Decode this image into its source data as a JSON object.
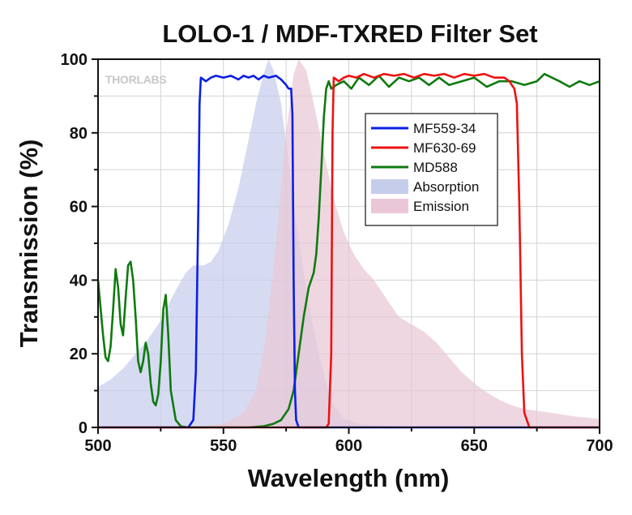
{
  "chart_data": {
    "type": "line",
    "title": "LOLO-1 / MDF-TXRED Filter Set",
    "xlabel": "Wavelength (nm)",
    "ylabel": "Transmission (%)",
    "xlim": [
      500,
      700
    ],
    "ylim": [
      0,
      100
    ],
    "x_ticks": [
      "500",
      "550",
      "600",
      "650",
      "700"
    ],
    "y_ticks": [
      "0",
      "20",
      "40",
      "60",
      "80",
      "100"
    ],
    "grid": true,
    "legend_position": "upper-right",
    "logo_text": "THORLABS",
    "series": [
      {
        "name": "MF559-34",
        "kind": "line",
        "color": "#0a1ee8",
        "points": [
          [
            500,
            0
          ],
          [
            536,
            0
          ],
          [
            538,
            2
          ],
          [
            539,
            15
          ],
          [
            540,
            60
          ],
          [
            540.5,
            88
          ],
          [
            541,
            95
          ],
          [
            543,
            94
          ],
          [
            545,
            95
          ],
          [
            547,
            95.5
          ],
          [
            550,
            95
          ],
          [
            553,
            95.5
          ],
          [
            556,
            94.5
          ],
          [
            558,
            95.5
          ],
          [
            560,
            95
          ],
          [
            562,
            95.5
          ],
          [
            564,
            94.5
          ],
          [
            566,
            95.5
          ],
          [
            568,
            95
          ],
          [
            571,
            95.5
          ],
          [
            573,
            94.5
          ],
          [
            575,
            93
          ],
          [
            576,
            92
          ],
          [
            577,
            92
          ],
          [
            577.5,
            85
          ],
          [
            578,
            40
          ],
          [
            578.5,
            10
          ],
          [
            579,
            2
          ],
          [
            580,
            0
          ],
          [
            700,
            0
          ]
        ]
      },
      {
        "name": "MF630-69",
        "kind": "line",
        "color": "#ee1111",
        "points": [
          [
            500,
            0
          ],
          [
            591,
            0
          ],
          [
            592,
            1
          ],
          [
            593,
            20
          ],
          [
            593.5,
            80
          ],
          [
            594,
            95
          ],
          [
            596,
            94
          ],
          [
            598,
            95
          ],
          [
            600,
            95.5
          ],
          [
            603,
            95
          ],
          [
            606,
            96
          ],
          [
            610,
            95
          ],
          [
            614,
            96
          ],
          [
            618,
            95.5
          ],
          [
            622,
            96
          ],
          [
            626,
            95
          ],
          [
            630,
            96
          ],
          [
            634,
            95.5
          ],
          [
            638,
            96
          ],
          [
            642,
            95
          ],
          [
            646,
            96
          ],
          [
            650,
            95.5
          ],
          [
            654,
            96
          ],
          [
            658,
            95
          ],
          [
            662,
            95
          ],
          [
            664,
            94
          ],
          [
            665,
            93
          ],
          [
            666,
            92
          ],
          [
            667,
            88
          ],
          [
            668,
            60
          ],
          [
            669,
            20
          ],
          [
            670,
            4
          ],
          [
            672,
            0
          ],
          [
            700,
            0
          ]
        ]
      },
      {
        "name": "MD588",
        "kind": "line",
        "color": "#0f7a0f",
        "points": [
          [
            500,
            40
          ],
          [
            502,
            25
          ],
          [
            503,
            19
          ],
          [
            504,
            18
          ],
          [
            505,
            22
          ],
          [
            506,
            32
          ],
          [
            507,
            43
          ],
          [
            508,
            38
          ],
          [
            509,
            28
          ],
          [
            510,
            25
          ],
          [
            511,
            35
          ],
          [
            512,
            44
          ],
          [
            513,
            45
          ],
          [
            514,
            40
          ],
          [
            515,
            30
          ],
          [
            516,
            18
          ],
          [
            517,
            15
          ],
          [
            518,
            18
          ],
          [
            519,
            23
          ],
          [
            520,
            20
          ],
          [
            521,
            12
          ],
          [
            522,
            7
          ],
          [
            523,
            6
          ],
          [
            524,
            9
          ],
          [
            525,
            18
          ],
          [
            526,
            32
          ],
          [
            527,
            36
          ],
          [
            528,
            25
          ],
          [
            529,
            10
          ],
          [
            531,
            2
          ],
          [
            533,
            0.3
          ],
          [
            536,
            0
          ],
          [
            560,
            0
          ],
          [
            566,
            0.3
          ],
          [
            570,
            1
          ],
          [
            573,
            2
          ],
          [
            576,
            5
          ],
          [
            578,
            10
          ],
          [
            580,
            20
          ],
          [
            582,
            30
          ],
          [
            584,
            38
          ],
          [
            586,
            42
          ],
          [
            587,
            47
          ],
          [
            588,
            57
          ],
          [
            589,
            70
          ],
          [
            590,
            84
          ],
          [
            591,
            92
          ],
          [
            592,
            94
          ],
          [
            593,
            92
          ],
          [
            595,
            93
          ],
          [
            598,
            94
          ],
          [
            601,
            92
          ],
          [
            604,
            95
          ],
          [
            608,
            93
          ],
          [
            612,
            95.5
          ],
          [
            616,
            92.5
          ],
          [
            620,
            95
          ],
          [
            624,
            94
          ],
          [
            628,
            95
          ],
          [
            632,
            93
          ],
          [
            636,
            95
          ],
          [
            640,
            93
          ],
          [
            645,
            94
          ],
          [
            650,
            95
          ],
          [
            655,
            92.5
          ],
          [
            660,
            94
          ],
          [
            665,
            94
          ],
          [
            670,
            93
          ],
          [
            675,
            94
          ],
          [
            678,
            96
          ],
          [
            681,
            95
          ],
          [
            684,
            94
          ],
          [
            688,
            92.5
          ],
          [
            692,
            94
          ],
          [
            696,
            93
          ],
          [
            700,
            94
          ]
        ]
      },
      {
        "name": "Absorption",
        "kind": "area",
        "color": "#c6cdeb",
        "points": [
          [
            500,
            11
          ],
          [
            505,
            13
          ],
          [
            510,
            16
          ],
          [
            515,
            20
          ],
          [
            520,
            24
          ],
          [
            525,
            29
          ],
          [
            530,
            36
          ],
          [
            535,
            42
          ],
          [
            538,
            44
          ],
          [
            542,
            44
          ],
          [
            545,
            45
          ],
          [
            548,
            48
          ],
          [
            552,
            55
          ],
          [
            556,
            65
          ],
          [
            560,
            78
          ],
          [
            563,
            88
          ],
          [
            566,
            96
          ],
          [
            568,
            100
          ],
          [
            570,
            97
          ],
          [
            573,
            88
          ],
          [
            576,
            72
          ],
          [
            579,
            56
          ],
          [
            582,
            42
          ],
          [
            585,
            30
          ],
          [
            588,
            20
          ],
          [
            591,
            12
          ],
          [
            594,
            6
          ],
          [
            598,
            2.5
          ],
          [
            605,
            0.8
          ],
          [
            620,
            0.2
          ],
          [
            640,
            0
          ],
          [
            700,
            0
          ]
        ]
      },
      {
        "name": "Emission",
        "kind": "area",
        "color": "#e9c7d6",
        "points": [
          [
            500,
            0
          ],
          [
            540,
            0
          ],
          [
            550,
            1
          ],
          [
            558,
            4
          ],
          [
            563,
            10
          ],
          [
            567,
            25
          ],
          [
            571,
            50
          ],
          [
            575,
            80
          ],
          [
            578,
            96
          ],
          [
            580,
            100
          ],
          [
            583,
            97
          ],
          [
            586,
            88
          ],
          [
            590,
            75
          ],
          [
            594,
            62
          ],
          [
            598,
            53
          ],
          [
            602,
            47
          ],
          [
            606,
            43
          ],
          [
            610,
            40
          ],
          [
            615,
            35
          ],
          [
            620,
            30
          ],
          [
            625,
            28
          ],
          [
            630,
            26
          ],
          [
            635,
            23
          ],
          [
            640,
            19
          ],
          [
            645,
            15
          ],
          [
            650,
            12
          ],
          [
            655,
            9.5
          ],
          [
            660,
            7.5
          ],
          [
            665,
            6
          ],
          [
            670,
            5
          ],
          [
            680,
            4
          ],
          [
            690,
            3
          ],
          [
            700,
            2.3
          ]
        ]
      }
    ]
  }
}
